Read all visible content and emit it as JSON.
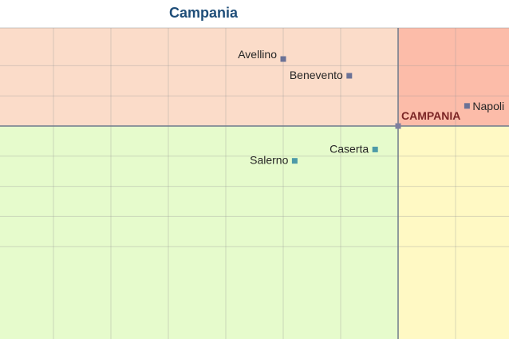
{
  "chart_data": {
    "type": "scatter",
    "title": "Campania",
    "xlabel": "",
    "ylabel": "",
    "grid": true,
    "quadrant_colors": {
      "top_left": "#fbdcc9",
      "top_right": "#fcbca9",
      "bottom_left": "#e6fbcc",
      "bottom_right": "#fff9c4"
    },
    "reference": {
      "name": "CAMPANIA",
      "x": 0,
      "y": 0,
      "color": "#7f7f9f"
    },
    "points": [
      {
        "name": "Avellino",
        "x": -2.0,
        "y": 1.0,
        "color": "#6b7296"
      },
      {
        "name": "Benevento",
        "x": -0.85,
        "y": 0.75,
        "color": "#6b7296"
      },
      {
        "name": "Napoli",
        "x": 1.2,
        "y": 0.3,
        "color": "#6b7296"
      },
      {
        "name": "Caserta",
        "x": -0.4,
        "y": -0.35,
        "color": "#4d9aa8"
      },
      {
        "name": "Salerno",
        "x": -1.8,
        "y": -0.52,
        "color": "#4d9aa8"
      }
    ]
  }
}
